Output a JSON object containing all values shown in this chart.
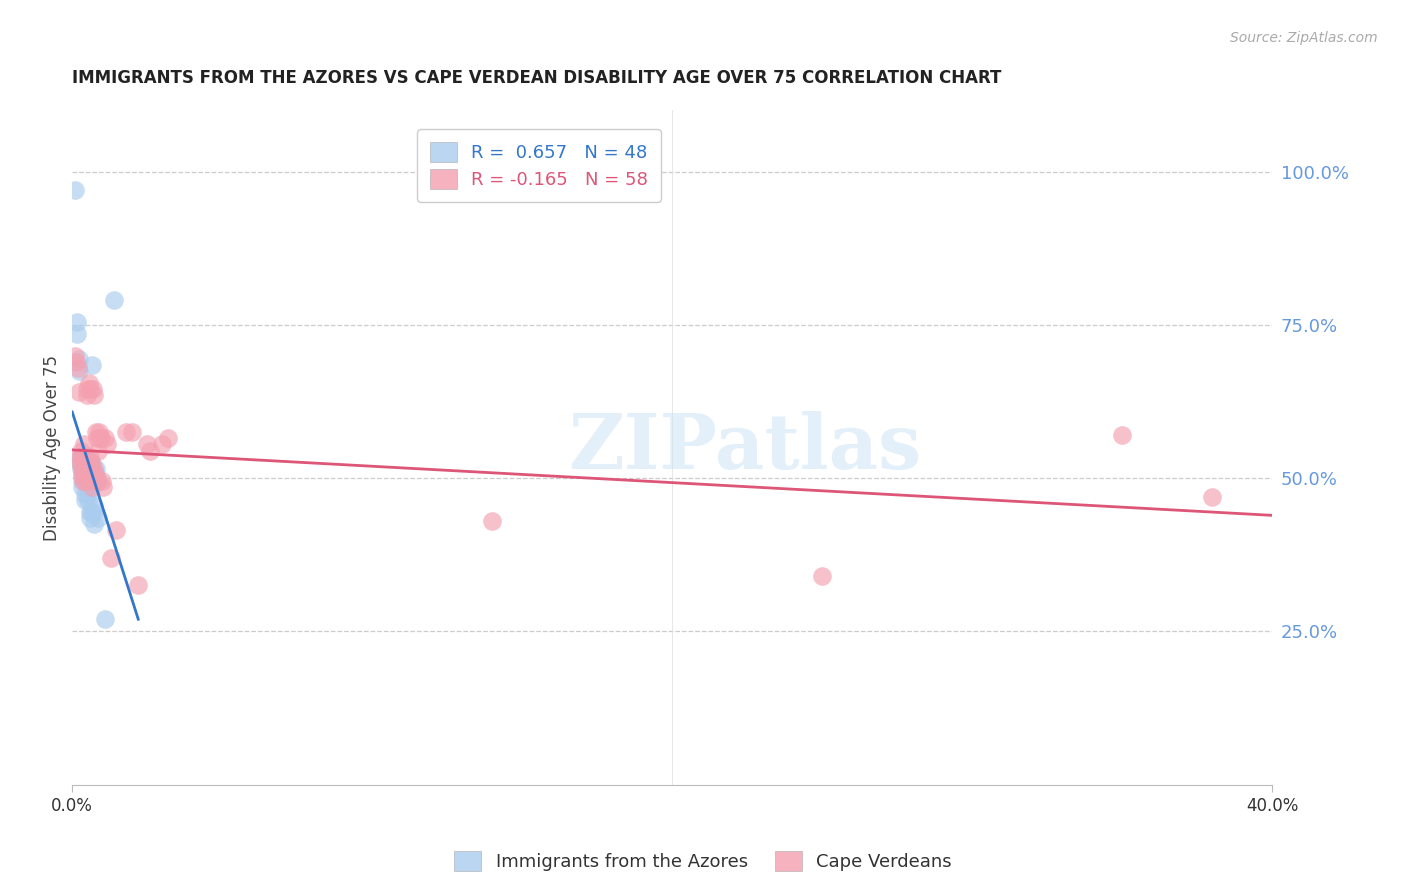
{
  "title": "IMMIGRANTS FROM THE AZORES VS CAPE VERDEAN DISABILITY AGE OVER 75 CORRELATION CHART",
  "source": "Source: ZipAtlas.com",
  "ylabel": "Disability Age Over 75",
  "right_ytick_labels": [
    "100.0%",
    "75.0%",
    "50.0%",
    "25.0%"
  ],
  "right_ytick_values": [
    1.0,
    0.75,
    0.5,
    0.25
  ],
  "legend_entries": [
    {
      "label": "R =  0.657   N = 48",
      "color": "#6baed6"
    },
    {
      "label": "R = -0.165   N = 58",
      "color": "#f08080"
    }
  ],
  "legend_label_azores": "Immigrants from the Azores",
  "legend_label_cv": "Cape Verdeans",
  "azores_color": "#aaccee",
  "cv_color": "#f4a0b0",
  "azores_line_color": "#3377cc",
  "cv_line_color": "#dd5577",
  "watermark_text": "ZIPatlas",
  "title_color": "#222222",
  "source_color": "#aaaaaa",
  "right_axis_color": "#6699dd",
  "xmin": 0.0,
  "xmax": 0.4,
  "ymin": 0.0,
  "ymax": 1.1,
  "xtick_positions": [
    0.0,
    0.4
  ],
  "xtick_labels": [
    "0.0%",
    "40.0%"
  ],
  "azores_points": [
    [
      0.0008,
      0.97
    ],
    [
      0.0015,
      0.755
    ],
    [
      0.0017,
      0.735
    ],
    [
      0.0022,
      0.695
    ],
    [
      0.0022,
      0.675
    ],
    [
      0.0025,
      0.535
    ],
    [
      0.0027,
      0.525
    ],
    [
      0.003,
      0.535
    ],
    [
      0.003,
      0.525
    ],
    [
      0.003,
      0.515
    ],
    [
      0.0032,
      0.505
    ],
    [
      0.0033,
      0.495
    ],
    [
      0.0034,
      0.485
    ],
    [
      0.0036,
      0.535
    ],
    [
      0.0037,
      0.525
    ],
    [
      0.0038,
      0.515
    ],
    [
      0.0039,
      0.505
    ],
    [
      0.004,
      0.495
    ],
    [
      0.0041,
      0.475
    ],
    [
      0.0042,
      0.465
    ],
    [
      0.0045,
      0.535
    ],
    [
      0.0046,
      0.525
    ],
    [
      0.0048,
      0.515
    ],
    [
      0.0049,
      0.505
    ],
    [
      0.005,
      0.495
    ],
    [
      0.0051,
      0.485
    ],
    [
      0.0053,
      0.475
    ],
    [
      0.0054,
      0.465
    ],
    [
      0.0055,
      0.525
    ],
    [
      0.0056,
      0.515
    ],
    [
      0.0057,
      0.505
    ],
    [
      0.0058,
      0.495
    ],
    [
      0.0059,
      0.445
    ],
    [
      0.006,
      0.435
    ],
    [
      0.0062,
      0.445
    ],
    [
      0.0065,
      0.685
    ],
    [
      0.0067,
      0.525
    ],
    [
      0.0068,
      0.515
    ],
    [
      0.007,
      0.505
    ],
    [
      0.0072,
      0.455
    ],
    [
      0.0073,
      0.445
    ],
    [
      0.0074,
      0.425
    ],
    [
      0.0078,
      0.515
    ],
    [
      0.008,
      0.505
    ],
    [
      0.0082,
      0.495
    ],
    [
      0.0085,
      0.435
    ],
    [
      0.011,
      0.27
    ],
    [
      0.014,
      0.79
    ]
  ],
  "cv_points": [
    [
      0.001,
      0.7
    ],
    [
      0.0012,
      0.69
    ],
    [
      0.0018,
      0.68
    ],
    [
      0.0022,
      0.64
    ],
    [
      0.0025,
      0.535
    ],
    [
      0.0027,
      0.525
    ],
    [
      0.003,
      0.545
    ],
    [
      0.0032,
      0.535
    ],
    [
      0.0033,
      0.515
    ],
    [
      0.0034,
      0.505
    ],
    [
      0.0035,
      0.495
    ],
    [
      0.0038,
      0.555
    ],
    [
      0.004,
      0.535
    ],
    [
      0.0041,
      0.525
    ],
    [
      0.0042,
      0.515
    ],
    [
      0.0043,
      0.505
    ],
    [
      0.0044,
      0.495
    ],
    [
      0.0048,
      0.645
    ],
    [
      0.005,
      0.635
    ],
    [
      0.0052,
      0.525
    ],
    [
      0.0053,
      0.515
    ],
    [
      0.0054,
      0.505
    ],
    [
      0.0057,
      0.655
    ],
    [
      0.0059,
      0.645
    ],
    [
      0.006,
      0.535
    ],
    [
      0.0062,
      0.525
    ],
    [
      0.0063,
      0.515
    ],
    [
      0.0064,
      0.505
    ],
    [
      0.0065,
      0.495
    ],
    [
      0.0066,
      0.485
    ],
    [
      0.007,
      0.645
    ],
    [
      0.0072,
      0.635
    ],
    [
      0.0073,
      0.515
    ],
    [
      0.0075,
      0.505
    ],
    [
      0.008,
      0.575
    ],
    [
      0.0082,
      0.565
    ],
    [
      0.0085,
      0.545
    ],
    [
      0.0087,
      0.495
    ],
    [
      0.009,
      0.575
    ],
    [
      0.0092,
      0.565
    ],
    [
      0.0095,
      0.565
    ],
    [
      0.01,
      0.495
    ],
    [
      0.0102,
      0.485
    ],
    [
      0.011,
      0.565
    ],
    [
      0.0115,
      0.555
    ],
    [
      0.013,
      0.37
    ],
    [
      0.0145,
      0.415
    ],
    [
      0.018,
      0.575
    ],
    [
      0.02,
      0.575
    ],
    [
      0.022,
      0.325
    ],
    [
      0.025,
      0.555
    ],
    [
      0.026,
      0.545
    ],
    [
      0.03,
      0.555
    ],
    [
      0.032,
      0.565
    ],
    [
      0.14,
      0.43
    ],
    [
      0.25,
      0.34
    ],
    [
      0.35,
      0.57
    ],
    [
      0.38,
      0.47
    ]
  ]
}
